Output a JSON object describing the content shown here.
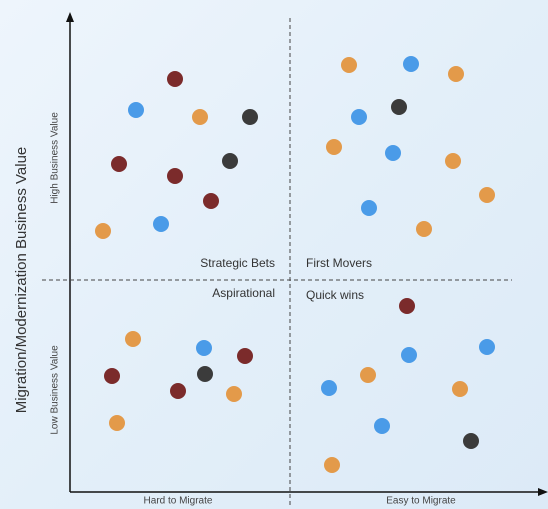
{
  "axes": {
    "y_title": "Migration/Modernization Business Value",
    "y_high": "High Business Value",
    "y_low": "Low Business Value",
    "x_left": "Hard to Migrate",
    "x_right": "Easy to Migrate"
  },
  "quadrants": {
    "top_left": "Strategic Bets",
    "top_right": "First Movers",
    "bottom_left": "Aspirational",
    "bottom_right": "Quick wins"
  }
}
